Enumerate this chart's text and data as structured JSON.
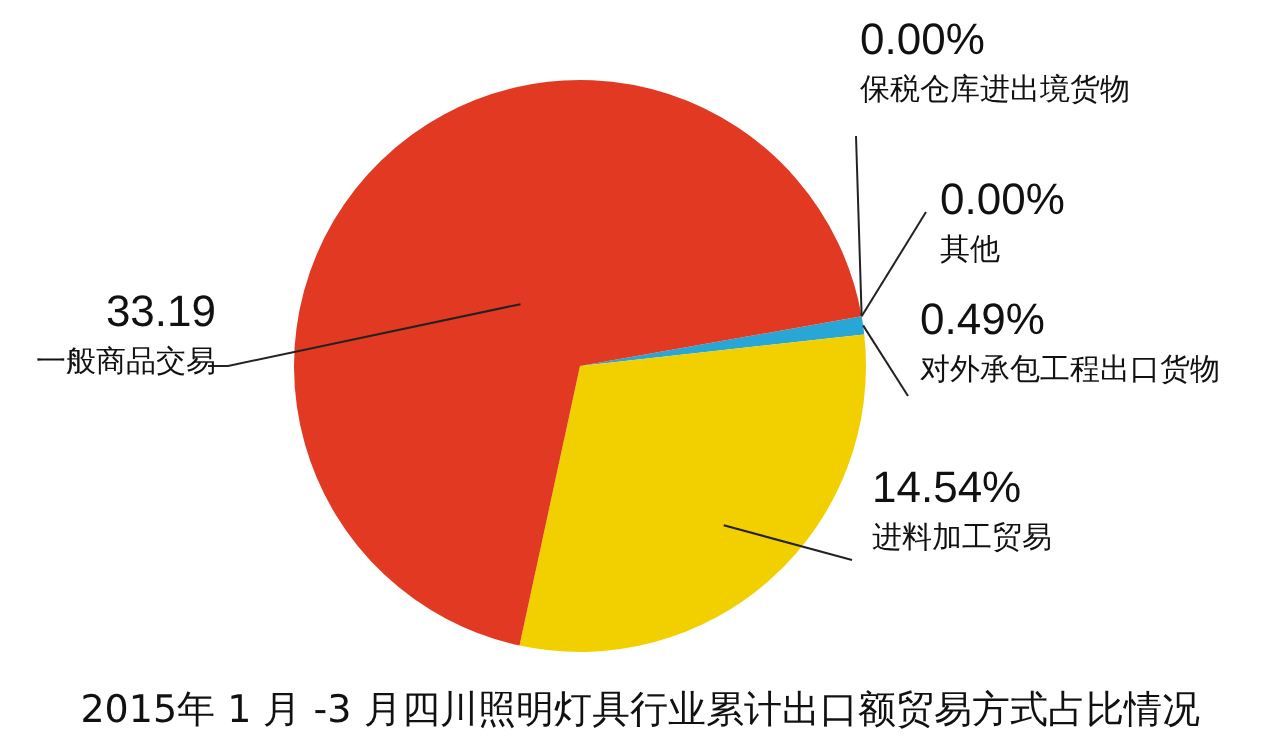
{
  "chart_data": {
    "type": "pie",
    "title": "2015年 1 月 -3 月四川照明灯具行业累计出口额贸易方式占比情况",
    "categories": [
      "保税仓库进出境货物",
      "其他",
      "对外承包工程出口货物",
      "进料加工贸易",
      "一般商品交易"
    ],
    "values": [
      0.0,
      0.0,
      0.49,
      14.54,
      33.19
    ],
    "value_labels": [
      "0.00%",
      "0.00%",
      "0.49%",
      "14.54%",
      "33.19"
    ],
    "colors": [
      "#3a9ad0",
      "#2bb0c8",
      "#28a6d6",
      "#f2d000",
      "#e23a22"
    ],
    "legend": false
  }
}
